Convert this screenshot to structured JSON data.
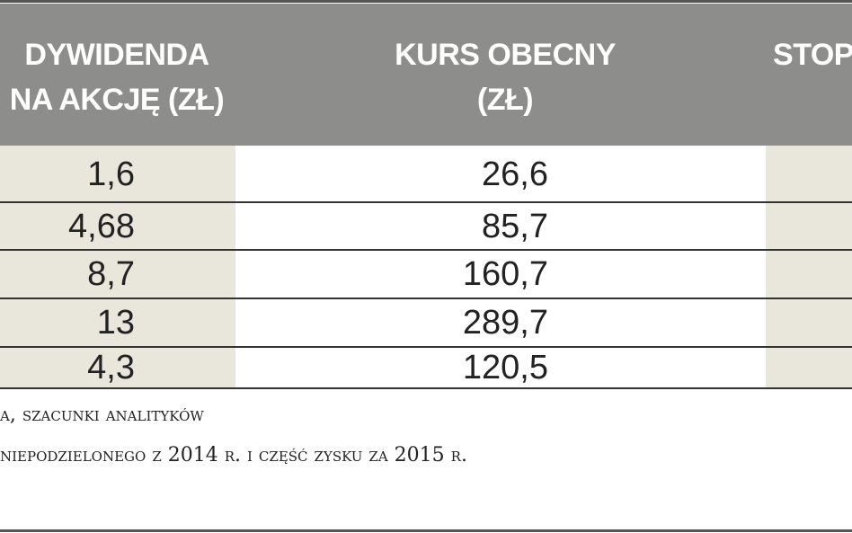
{
  "table": {
    "headers": [
      [
        "DYWIDENDA",
        "NA AKCJĘ (ZŁ)"
      ],
      [
        "KURS OBECNY",
        "(ZŁ)"
      ],
      [
        "STOP"
      ]
    ],
    "rows": [
      [
        "1,6",
        "26,6"
      ],
      [
        "4,68",
        "85,7"
      ],
      [
        "8,7",
        "160,7"
      ],
      [
        "13",
        "289,7"
      ],
      [
        "4,3",
        "120,5"
      ]
    ]
  },
  "notes": [
    "a, szacunki analityków",
    "niepodzielonego z 2014 r. i część zysku za 2015 r."
  ]
}
